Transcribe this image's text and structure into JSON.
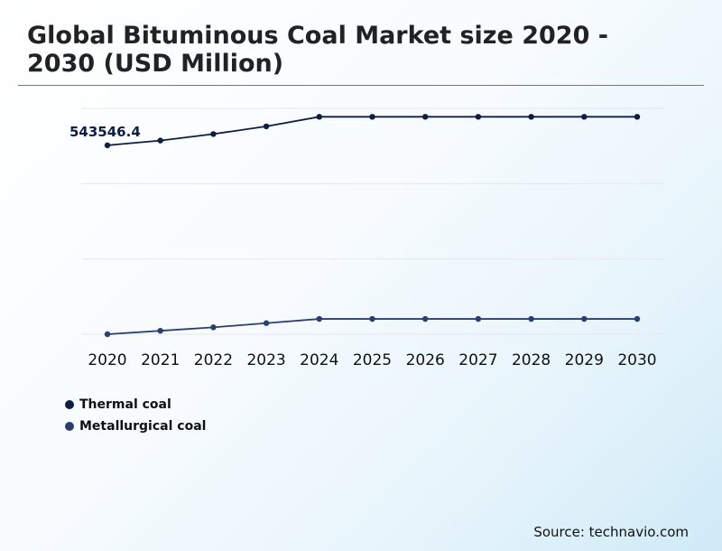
{
  "title": "Global Bituminous Coal Market size 2020 - 2030 (USD Million)",
  "source": "Source: technavio.com",
  "colors": {
    "thermal": "#0e1e3f",
    "metallurgical": "#2c3e6e",
    "grid": "#e5e8ec"
  },
  "legend": {
    "items": [
      {
        "label": "Thermal coal",
        "color": "#0e1e3f"
      },
      {
        "label": "Metallurgical coal",
        "color": "#2c3e6e"
      }
    ]
  },
  "chart_data": {
    "type": "line",
    "title": "Global Bituminous Coal Market size 2020 - 2030 (USD Million)",
    "xlabel": "",
    "ylabel": "",
    "x": [
      "2020",
      "2021",
      "2022",
      "2023",
      "2024",
      "2025",
      "2026",
      "2027",
      "2028",
      "2029",
      "2030"
    ],
    "ylim": [
      50000,
      640000
    ],
    "grid": true,
    "legend_position": "bottom-left",
    "series": [
      {
        "name": "Thermal coal",
        "values": [
          543546.4,
          556000,
          573000,
          593000,
          618000,
          618000,
          618000,
          618000,
          618000,
          618000,
          618000
        ],
        "annotations": [
          {
            "index": 0,
            "text": "543546.4"
          }
        ]
      },
      {
        "name": "Metallurgical coal",
        "values": [
          50000,
          59000,
          68000,
          79000,
          90000,
          90000,
          90000,
          90000,
          90000,
          90000,
          90000
        ]
      }
    ]
  }
}
